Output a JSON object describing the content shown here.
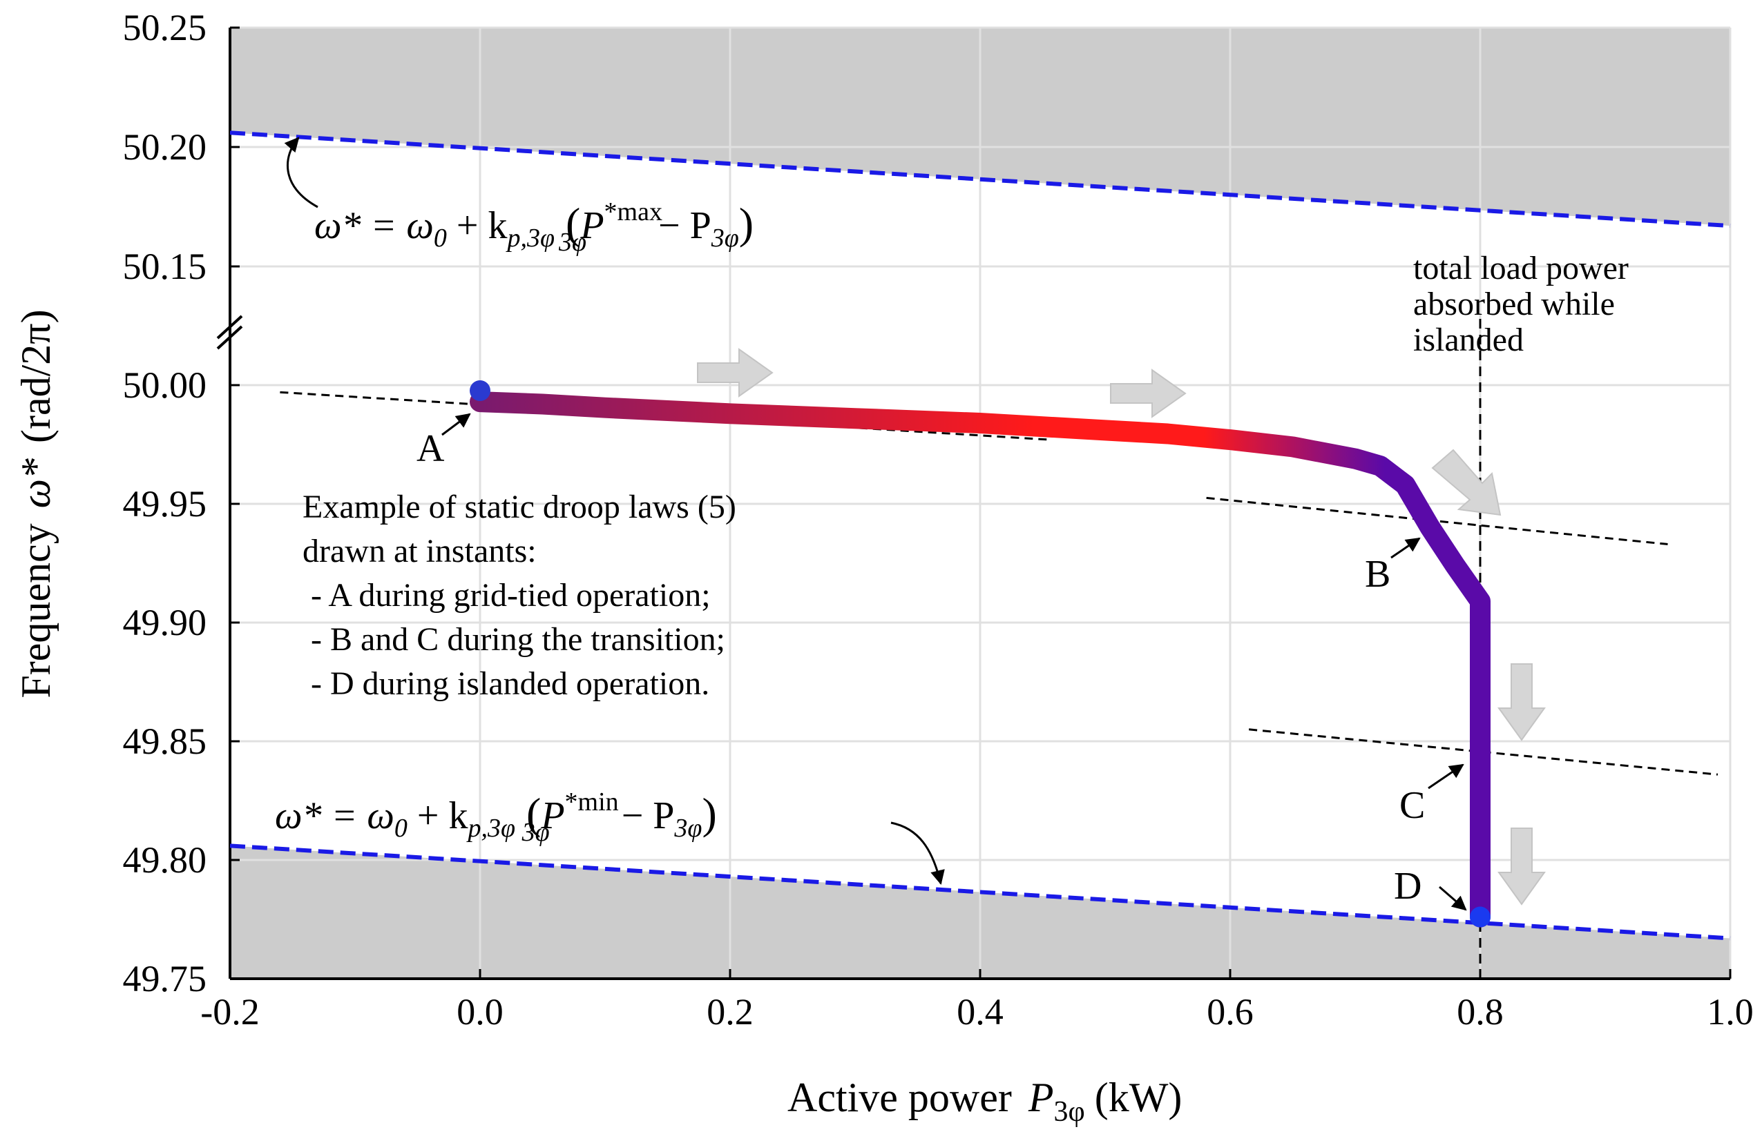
{
  "chart_data": {
    "type": "line",
    "title": "",
    "xlabel": "Active power",
    "xlabel_symbol": "P",
    "xlabel_subscript": "3φ",
    "xlabel_unit": "(kW)",
    "ylabel": "Frequency",
    "ylabel_symbol": "ω*",
    "ylabel_unit": "(rad/2π)",
    "xlim": [
      -0.2,
      1.0
    ],
    "x_ticks": [
      -0.2,
      0.0,
      0.2,
      0.4,
      0.6,
      0.8,
      1.0
    ],
    "x_tick_labels": [
      "-0.2",
      "0.0",
      "0.2",
      "0.4",
      "0.6",
      "0.8",
      "1.0"
    ],
    "y_tick_labels": [
      "50.25",
      "50.20",
      "50.15",
      "50.00",
      "49.95",
      "49.90",
      "49.85",
      "49.80",
      "49.75"
    ],
    "axis_break": "between 50.15 and 50.00",
    "grid": true,
    "shaded_regions": [
      {
        "name": "above max droop law",
        "color": "#cccccc"
      },
      {
        "name": "below min droop law",
        "color": "#cccccc"
      }
    ],
    "series": [
      {
        "name": "trajectory",
        "colors": [
          "#7a1a6e",
          "#ff1a1a",
          "#5a0aa8"
        ],
        "x": [
          0.0,
          0.05,
          0.1,
          0.2,
          0.3,
          0.4,
          0.5,
          0.55,
          0.6,
          0.65,
          0.7,
          0.72,
          0.74,
          0.76,
          0.78,
          0.8,
          0.8,
          0.8,
          0.8,
          0.8
        ],
        "y": [
          49.993,
          49.992,
          49.9905,
          49.988,
          49.986,
          49.984,
          49.981,
          49.9795,
          49.977,
          49.974,
          49.969,
          49.966,
          49.958,
          49.94,
          49.924,
          49.909,
          49.88,
          49.84,
          49.8,
          49.776
        ]
      },
      {
        "name": "max droop law",
        "style": "dashed",
        "color": "#1a1ae6",
        "x": [
          -0.2,
          1.0
        ],
        "y": [
          50.206,
          50.167
        ]
      },
      {
        "name": "min droop law",
        "style": "dashed",
        "color": "#1a1ae6",
        "x": [
          -0.2,
          1.0
        ],
        "y": [
          49.806,
          49.767
        ]
      },
      {
        "name": "droop law A",
        "style": "dashed",
        "color": "#000000",
        "x": [
          -0.16,
          0.456
        ],
        "y": [
          49.997,
          49.977
        ]
      },
      {
        "name": "droop law B",
        "style": "dashed",
        "color": "#000000",
        "x": [
          0.581,
          0.95
        ],
        "y": [
          49.9525,
          49.933
        ]
      },
      {
        "name": "droop law C",
        "style": "dashed",
        "color": "#000000",
        "x": [
          0.615,
          0.99
        ],
        "y": [
          49.855,
          49.836
        ]
      }
    ],
    "points": [
      {
        "label": "A",
        "x": 0.0,
        "y": 49.993
      },
      {
        "label": "B",
        "x": 0.8,
        "y": 49.938
      },
      {
        "label": "C",
        "x": 0.8,
        "y": 49.841
      },
      {
        "label": "D",
        "x": 0.8,
        "y": 49.776
      }
    ],
    "vertical_line": {
      "x": 0.8,
      "label_lines": [
        "total load power",
        "absorbed while",
        "islanded"
      ]
    },
    "annotation": {
      "lines": [
        "Example of static droop laws (5)",
        "drawn at instants:",
        " - A during grid-tied operation;",
        " - B and C during the transition;",
        " - D during islanded operation."
      ]
    },
    "equations": {
      "max": {
        "lhs": "ω* = ω",
        "sub0": "0",
        "mid": " + k",
        "subk": "p,3φ",
        "paren_open": " (",
        "P": "P",
        "sup": "*max",
        "subP": "3φ",
        "minus": " − P",
        "subP2": "3φ",
        "paren_close": ")"
      },
      "min": {
        "lhs": "ω* = ω",
        "sub0": "0",
        "mid": " + k",
        "subk": "p,3φ",
        "paren_open": " (",
        "P": "P",
        "sup": "*min",
        "subP": "3φ",
        "minus": " − P",
        "subP2": "3φ",
        "paren_close": ")"
      }
    },
    "flow_arrows": [
      "right",
      "right",
      "down-right",
      "down",
      "down"
    ],
    "flow_arrow_color": "#d6d6d6"
  }
}
